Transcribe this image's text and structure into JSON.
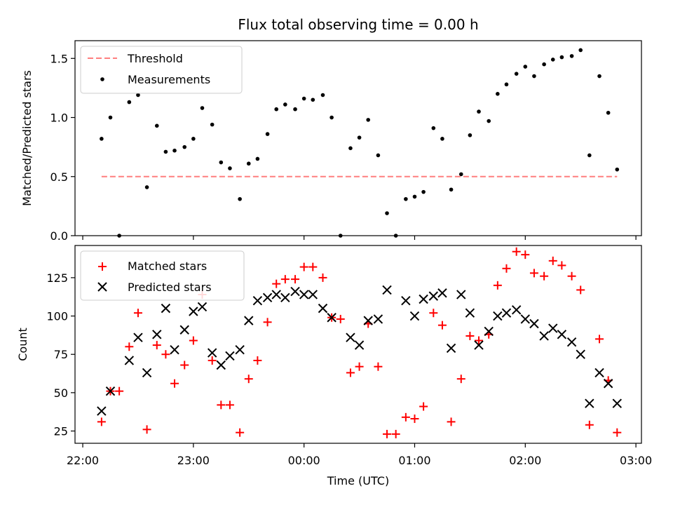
{
  "chart_data": [
    {
      "type": "scatter",
      "title": "Flux total observing time = 0.00 h",
      "ylabel": "Matched/Predicted stars",
      "xlabel": "",
      "x_range_hours": [
        21.93,
        27.05
      ],
      "ylim": [
        0,
        1.65
      ],
      "yticks": [
        0.0,
        0.5,
        1.0,
        1.5
      ],
      "ytick_labels": [
        "0.0",
        "0.5",
        "1.0",
        "1.5"
      ],
      "grid": false,
      "legend_position": "upper-left",
      "series": [
        {
          "name": "Threshold",
          "kind": "dashed-line",
          "color": "#ff7f7f",
          "x": [
            22.17,
            26.83
          ],
          "y": [
            0.5,
            0.5
          ]
        },
        {
          "name": "Measurements",
          "kind": "points",
          "color": "#000000",
          "x": [
            22.17,
            22.25,
            22.33,
            22.42,
            22.5,
            22.58,
            22.67,
            22.75,
            22.83,
            22.92,
            23.0,
            23.08,
            23.17,
            23.25,
            23.33,
            23.42,
            23.5,
            23.58,
            23.67,
            23.75,
            23.83,
            23.92,
            24.0,
            24.08,
            24.17,
            24.25,
            24.33,
            24.42,
            24.5,
            24.58,
            24.67,
            24.75,
            24.83,
            24.92,
            25.0,
            25.08,
            25.17,
            25.25,
            25.33,
            25.42,
            25.5,
            25.58,
            25.67,
            25.75,
            25.83,
            25.92,
            26.0,
            26.08,
            26.17,
            26.25,
            26.33,
            26.42,
            26.5,
            26.58,
            26.67,
            26.75,
            26.83
          ],
          "y": [
            0.82,
            1.0,
            0.0,
            1.13,
            1.19,
            0.41,
            0.93,
            0.71,
            0.72,
            0.75,
            0.82,
            1.08,
            0.94,
            0.62,
            0.57,
            0.31,
            0.61,
            0.65,
            0.86,
            1.07,
            1.11,
            1.07,
            1.16,
            1.15,
            1.19,
            1.0,
            0.0,
            0.74,
            0.83,
            0.98,
            0.68,
            0.19,
            0.0,
            0.31,
            0.33,
            0.37,
            0.91,
            0.82,
            0.39,
            0.52,
            0.85,
            1.05,
            0.97,
            1.2,
            1.28,
            1.37,
            1.43,
            1.35,
            1.45,
            1.49,
            1.51,
            1.52,
            1.57,
            0.68,
            1.35,
            1.04,
            0.56
          ]
        }
      ]
    },
    {
      "type": "scatter",
      "title": "",
      "ylabel": "Count",
      "xlabel": "Time (UTC)",
      "x_range_hours": [
        21.93,
        27.05
      ],
      "xticks_hours": [
        22,
        23,
        24,
        25,
        26,
        27
      ],
      "xtick_labels": [
        "22:00",
        "23:00",
        "00:00",
        "01:00",
        "02:00",
        "03:00"
      ],
      "ylim": [
        17,
        146
      ],
      "yticks": [
        25,
        50,
        75,
        100,
        125
      ],
      "ytick_labels": [
        "25",
        "50",
        "75",
        "100",
        "125"
      ],
      "grid": false,
      "legend_position": "upper-left",
      "series": [
        {
          "name": "Matched stars",
          "kind": "plus",
          "color": "#ff0000",
          "x": [
            22.17,
            22.25,
            22.33,
            22.42,
            22.5,
            22.58,
            22.67,
            22.75,
            22.83,
            22.92,
            23.0,
            23.08,
            23.17,
            23.25,
            23.33,
            23.42,
            23.5,
            23.58,
            23.67,
            23.75,
            23.83,
            23.92,
            24.0,
            24.08,
            24.17,
            24.25,
            24.33,
            24.42,
            24.5,
            24.58,
            24.67,
            24.75,
            24.83,
            24.92,
            25.0,
            25.08,
            25.17,
            25.25,
            25.33,
            25.42,
            25.5,
            25.58,
            25.67,
            25.75,
            25.83,
            25.92,
            26.0,
            26.08,
            26.17,
            26.25,
            26.33,
            26.42,
            26.5,
            26.58,
            26.67,
            26.75,
            26.83
          ],
          "y": [
            31,
            51,
            51,
            80,
            102,
            26,
            81,
            75,
            56,
            68,
            84,
            114,
            71,
            42,
            42,
            24,
            59,
            71,
            96,
            121,
            124,
            124,
            132,
            132,
            125,
            99,
            98,
            63,
            67,
            95,
            67,
            23,
            23,
            34,
            33,
            41,
            102,
            94,
            31,
            59,
            87,
            84,
            88,
            120,
            131,
            142,
            140,
            128,
            126,
            136,
            133,
            126,
            117,
            29,
            85,
            58,
            24
          ]
        },
        {
          "name": "Predicted stars",
          "kind": "cross",
          "color": "#000000",
          "x": [
            22.17,
            22.25,
            22.42,
            22.5,
            22.58,
            22.67,
            22.75,
            22.83,
            22.92,
            23.0,
            23.08,
            23.17,
            23.25,
            23.33,
            23.42,
            23.5,
            23.58,
            23.67,
            23.75,
            23.83,
            23.92,
            24.0,
            24.08,
            24.17,
            24.25,
            24.42,
            24.5,
            24.58,
            24.67,
            24.75,
            24.92,
            25.0,
            25.08,
            25.17,
            25.25,
            25.33,
            25.42,
            25.5,
            25.58,
            25.67,
            25.75,
            25.83,
            25.92,
            26.0,
            26.08,
            26.17,
            26.25,
            26.33,
            26.42,
            26.5,
            26.58,
            26.67,
            26.75,
            26.83
          ],
          "y": [
            38,
            51,
            71,
            86,
            63,
            88,
            105,
            78,
            91,
            103,
            106,
            76,
            68,
            74,
            78,
            97,
            110,
            112,
            114,
            112,
            116,
            114,
            114,
            105,
            99,
            86,
            81,
            97,
            98,
            117,
            110,
            100,
            111,
            113,
            115,
            79,
            114,
            102,
            81,
            90,
            100,
            102,
            104,
            98,
            95,
            87,
            92,
            88,
            83,
            75,
            43,
            63,
            56,
            43
          ]
        }
      ]
    }
  ]
}
